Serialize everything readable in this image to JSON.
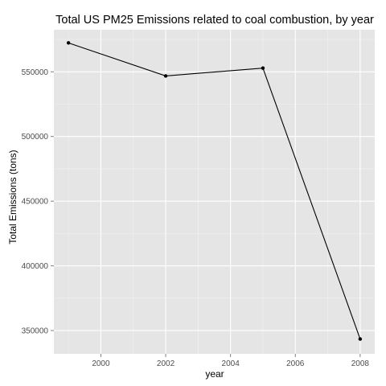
{
  "chart_data": {
    "type": "line",
    "title": "Total US PM25 Emissions related to coal combustion, by year",
    "xlabel": "year",
    "ylabel": "Total Emissions (tons)",
    "x": [
      1999,
      2002,
      2005,
      2008
    ],
    "series": [
      {
        "values": [
          572346,
          546789,
          552881,
          343432
        ]
      }
    ],
    "xticks": [
      2000,
      2002,
      2004,
      2006,
      2008
    ],
    "yticks": [
      350000,
      400000,
      450000,
      500000,
      550000
    ],
    "xlim": [
      1998.55,
      2008.45
    ],
    "ylim": [
      332000,
      582500
    ],
    "grid": true,
    "markers": true,
    "colors": {
      "panel_background": "#e5e5e5",
      "major_grid": "#ffffff",
      "minor_grid": "#f2f2f2",
      "line": "#000000",
      "tick_text": "#4d4d4d"
    }
  }
}
